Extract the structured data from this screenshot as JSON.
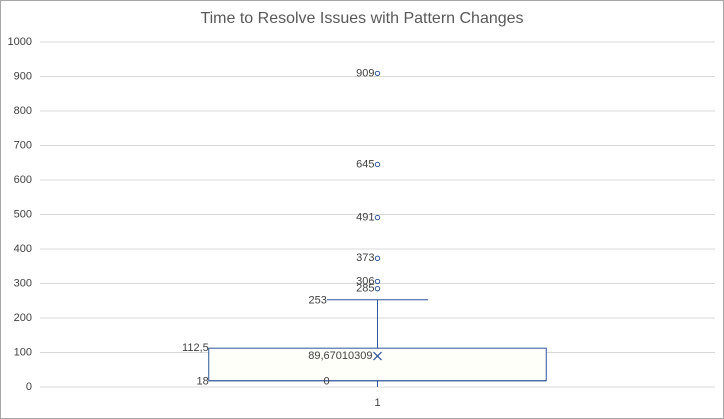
{
  "chart_data": {
    "type": "box",
    "title": "Time to Resolve Issues with Pattern Changes",
    "categories": [
      "1"
    ],
    "boxes": [
      {
        "whisker_low": 0,
        "q1": 18,
        "median": 18,
        "q3": 112.5,
        "whisker_high": 253,
        "mean": 89.67010309,
        "outliers": [
          909,
          645,
          491,
          373,
          306,
          285
        ],
        "value_labels": {
          "q3": "112,5",
          "mean": "89,67010309"
        }
      }
    ],
    "color": "#2e5597",
    "ylim": [
      0,
      1000
    ],
    "yticks": [
      0,
      100,
      200,
      300,
      400,
      500,
      600,
      700,
      800,
      900,
      1000
    ],
    "grid": true
  }
}
